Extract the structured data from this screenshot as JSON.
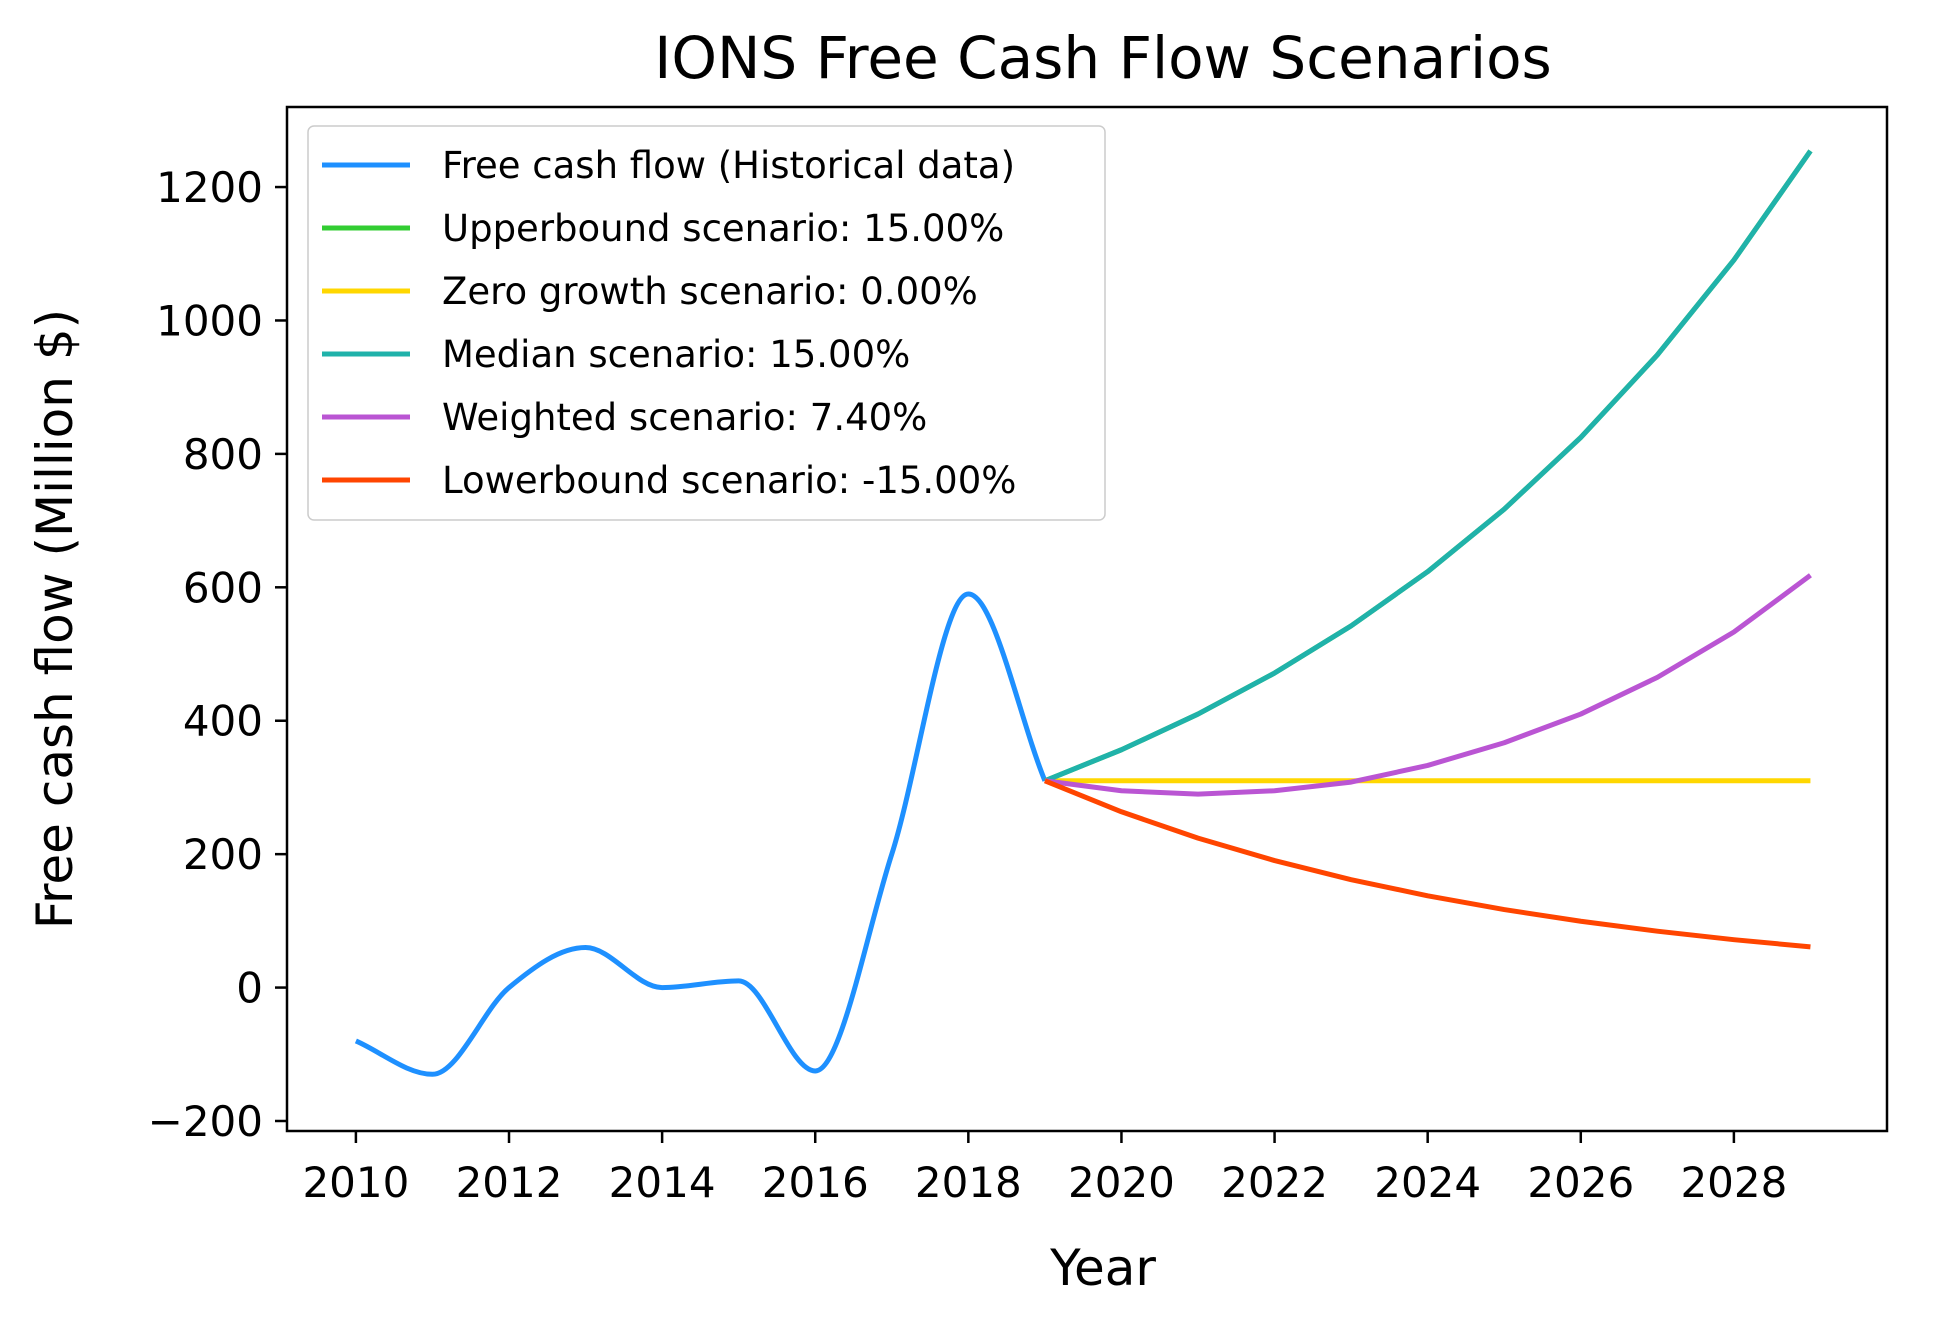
{
  "chart_data": {
    "type": "line",
    "title": "IONS Free Cash Flow Scenarios",
    "xlabel": "Year",
    "ylabel": "Free cash flow (Million $)",
    "xlim": [
      2009.1,
      2030.0
    ],
    "ylim": [
      -215,
      1320
    ],
    "xticks": [
      2010,
      2012,
      2014,
      2016,
      2018,
      2020,
      2022,
      2024,
      2026,
      2028
    ],
    "yticks": [
      -200,
      0,
      200,
      400,
      600,
      800,
      1000,
      1200
    ],
    "ytick_labels": [
      "−200",
      "0",
      "200",
      "400",
      "600",
      "800",
      "1000",
      "1200"
    ],
    "grid": false,
    "legend_position": "top-left",
    "series": [
      {
        "name": "Free cash flow (Historical data)",
        "color": "#1E90FF",
        "smooth": true,
        "x": [
          2010,
          2011,
          2012,
          2013,
          2014,
          2015,
          2016,
          2017,
          2018,
          2019
        ],
        "y": [
          -80,
          -130,
          0,
          60,
          0,
          10,
          -125,
          200,
          590,
          310
        ]
      },
      {
        "name": "Upperbound scenario: 15.00%",
        "color": "#32CD32",
        "x": [
          2019,
          2020,
          2021,
          2022,
          2023,
          2024,
          2025,
          2026,
          2027,
          2028,
          2029
        ],
        "y": [
          310,
          356.5,
          410,
          471.5,
          542.2,
          623.5,
          717.1,
          824.6,
          948.3,
          1090.5,
          1254.1
        ]
      },
      {
        "name": "Zero growth scenario: 0.00%",
        "color": "#FFD700",
        "x": [
          2019,
          2020,
          2021,
          2022,
          2023,
          2024,
          2025,
          2026,
          2027,
          2028,
          2029
        ],
        "y": [
          310,
          310,
          310,
          310,
          310,
          310,
          310,
          310,
          310,
          310,
          310
        ]
      },
      {
        "name": "Median scenario: 15.00%",
        "color": "#20B2AA",
        "x": [
          2019,
          2020,
          2021,
          2022,
          2023,
          2024,
          2025,
          2026,
          2027,
          2028,
          2029
        ],
        "y": [
          310,
          356.5,
          410,
          471.5,
          542.2,
          623.5,
          717.1,
          824.6,
          948.3,
          1090.5,
          1254.1
        ]
      },
      {
        "name": "Weighted scenario: 7.40%",
        "color": "#BA55D3",
        "x": [
          2019,
          2020,
          2021,
          2022,
          2023,
          2024,
          2025,
          2026,
          2027,
          2028,
          2029
        ],
        "y": [
          310,
          295,
          290,
          295,
          308,
          333,
          367,
          410,
          465,
          533,
          618
        ]
      },
      {
        "name": "Lowerbound scenario: -15.00%",
        "color": "#FF4500",
        "x": [
          2019,
          2020,
          2021,
          2022,
          2023,
          2024,
          2025,
          2026,
          2027,
          2028,
          2029
        ],
        "y": [
          310,
          263.5,
          224,
          190.4,
          161.8,
          137.5,
          116.9,
          99.4,
          84.5,
          71.8,
          61
        ]
      }
    ]
  }
}
